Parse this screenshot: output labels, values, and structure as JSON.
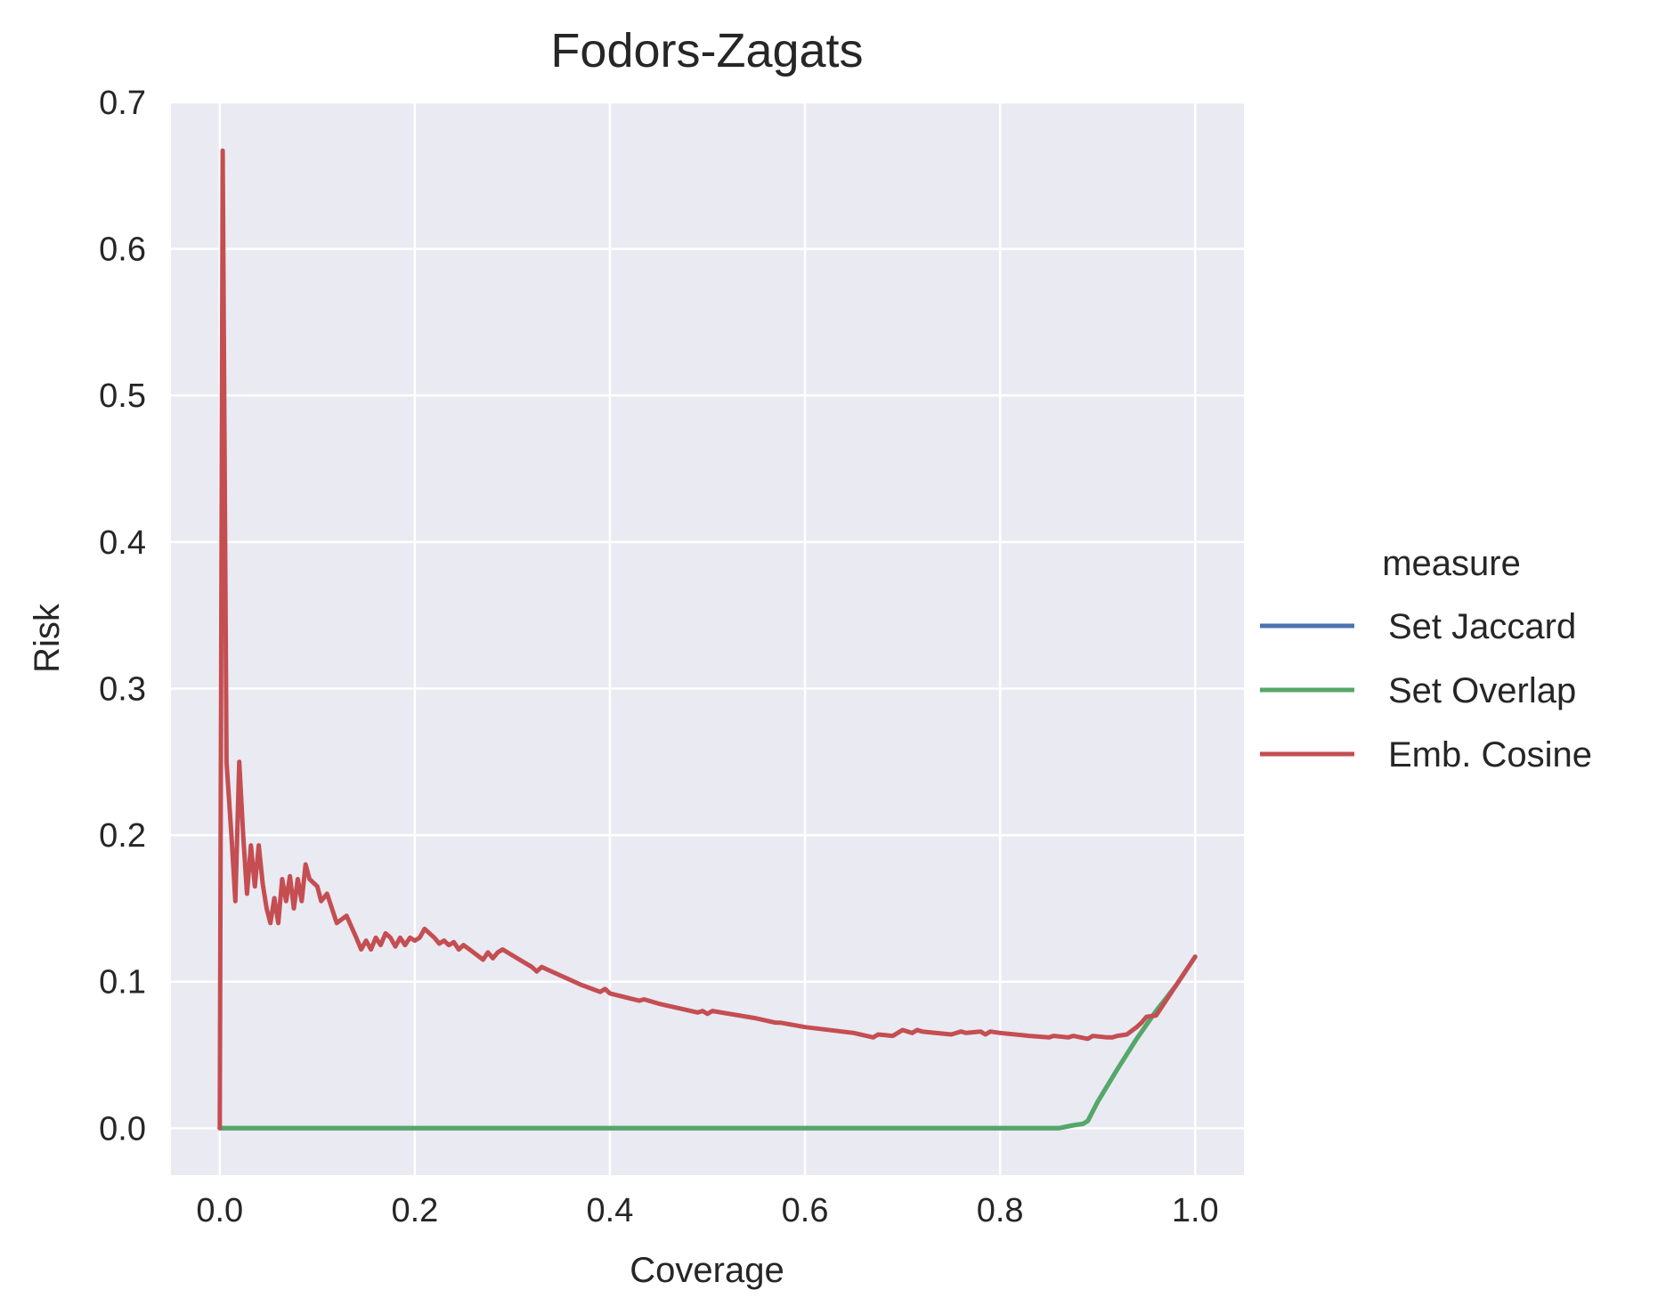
{
  "chart_data": {
    "type": "line",
    "title": "Fodors-Zagats",
    "xlabel": "Coverage",
    "ylabel": "Risk",
    "xlim": [
      -0.05,
      1.05
    ],
    "ylim": [
      -0.032,
      0.7
    ],
    "xticks": [
      "0.0",
      "0.2",
      "0.4",
      "0.6",
      "0.8",
      "1.0"
    ],
    "xtick_values": [
      0,
      0.2,
      0.4,
      0.6,
      0.8,
      1.0
    ],
    "yticks": [
      "0.0",
      "0.1",
      "0.2",
      "0.3",
      "0.4",
      "0.5",
      "0.6",
      "0.7"
    ],
    "ytick_values": [
      0,
      0.1,
      0.2,
      0.3,
      0.4,
      0.5,
      0.6,
      0.7
    ],
    "grid": true,
    "legend": {
      "title": "measure",
      "placement": "right"
    },
    "series": [
      {
        "name": "Set Jaccard",
        "color": "#4c72b0",
        "x": [
          0.0,
          0.86,
          0.875,
          0.885,
          0.89,
          0.9,
          0.92,
          0.94,
          0.96,
          0.98,
          1.0
        ],
        "y": [
          0.0,
          0.0,
          0.002,
          0.003,
          0.005,
          0.018,
          0.04,
          0.061,
          0.08,
          0.097,
          0.117
        ]
      },
      {
        "name": "Set Overlap",
        "color": "#55a868",
        "x": [
          0.0,
          0.86,
          0.875,
          0.885,
          0.89,
          0.9,
          0.92,
          0.94,
          0.96,
          0.98,
          1.0
        ],
        "y": [
          0.0,
          0.0,
          0.002,
          0.003,
          0.005,
          0.018,
          0.04,
          0.061,
          0.08,
          0.097,
          0.117
        ]
      },
      {
        "name": "Emb. Cosine",
        "color": "#c44e52",
        "x": [
          0.0,
          0.003,
          0.007,
          0.012,
          0.016,
          0.02,
          0.024,
          0.028,
          0.032,
          0.036,
          0.04,
          0.044,
          0.048,
          0.052,
          0.056,
          0.06,
          0.064,
          0.068,
          0.072,
          0.076,
          0.08,
          0.084,
          0.088,
          0.092,
          0.1,
          0.104,
          0.11,
          0.12,
          0.13,
          0.14,
          0.145,
          0.15,
          0.155,
          0.16,
          0.165,
          0.17,
          0.175,
          0.18,
          0.185,
          0.19,
          0.195,
          0.2,
          0.205,
          0.21,
          0.22,
          0.225,
          0.23,
          0.235,
          0.24,
          0.245,
          0.25,
          0.26,
          0.27,
          0.275,
          0.28,
          0.285,
          0.29,
          0.3,
          0.32,
          0.325,
          0.33,
          0.35,
          0.37,
          0.39,
          0.395,
          0.4,
          0.43,
          0.435,
          0.45,
          0.49,
          0.495,
          0.5,
          0.505,
          0.55,
          0.57,
          0.575,
          0.6,
          0.65,
          0.67,
          0.675,
          0.69,
          0.695,
          0.7,
          0.71,
          0.715,
          0.72,
          0.75,
          0.76,
          0.765,
          0.78,
          0.785,
          0.79,
          0.8,
          0.83,
          0.85,
          0.855,
          0.87,
          0.875,
          0.89,
          0.895,
          0.91,
          0.915,
          0.92,
          0.93,
          0.94,
          0.945,
          0.95,
          0.96,
          0.98,
          1.0
        ],
        "y": [
          0.0,
          0.667,
          0.25,
          0.2,
          0.155,
          0.25,
          0.2,
          0.16,
          0.193,
          0.165,
          0.193,
          0.167,
          0.15,
          0.14,
          0.157,
          0.14,
          0.17,
          0.155,
          0.172,
          0.15,
          0.17,
          0.155,
          0.18,
          0.17,
          0.165,
          0.155,
          0.16,
          0.14,
          0.145,
          0.13,
          0.122,
          0.128,
          0.122,
          0.13,
          0.125,
          0.133,
          0.13,
          0.124,
          0.13,
          0.125,
          0.13,
          0.128,
          0.13,
          0.136,
          0.13,
          0.126,
          0.128,
          0.125,
          0.127,
          0.122,
          0.125,
          0.12,
          0.115,
          0.12,
          0.116,
          0.12,
          0.122,
          0.118,
          0.11,
          0.107,
          0.11,
          0.104,
          0.098,
          0.093,
          0.095,
          0.092,
          0.087,
          0.088,
          0.085,
          0.079,
          0.08,
          0.078,
          0.08,
          0.075,
          0.072,
          0.072,
          0.069,
          0.065,
          0.062,
          0.064,
          0.063,
          0.065,
          0.067,
          0.065,
          0.067,
          0.066,
          0.064,
          0.066,
          0.065,
          0.066,
          0.064,
          0.066,
          0.065,
          0.063,
          0.062,
          0.063,
          0.062,
          0.063,
          0.061,
          0.063,
          0.062,
          0.062,
          0.063,
          0.064,
          0.069,
          0.072,
          0.076,
          0.077,
          0.097,
          0.117
        ]
      }
    ]
  }
}
